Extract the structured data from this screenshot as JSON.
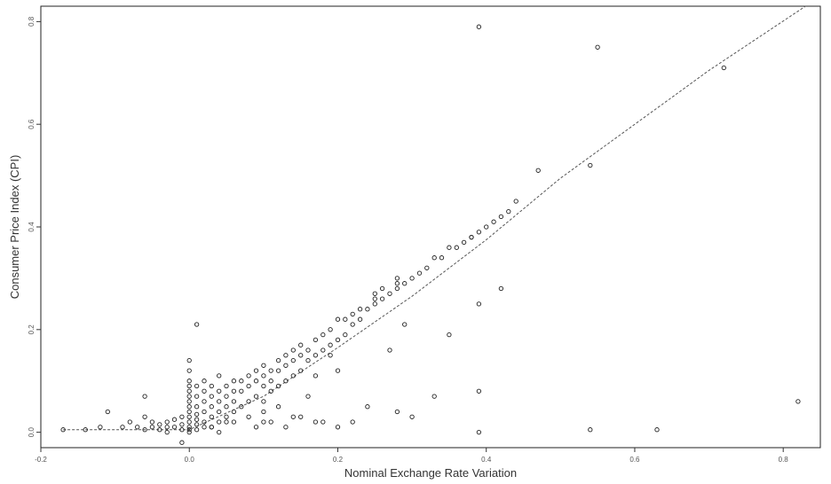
{
  "chart_data": {
    "type": "scatter",
    "title": "",
    "xlabel": "Nominal Exchange Rate Variation",
    "ylabel": "Consumer Price Index (CPI)",
    "xlim": [
      -0.2,
      0.85
    ],
    "ylim": [
      -0.03,
      0.83
    ],
    "xticks": [
      -0.2,
      0.0,
      0.2,
      0.4,
      0.6,
      0.8
    ],
    "xtick_labels": [
      "-0.2",
      "0.0",
      "0.2",
      "0.4",
      "0.6",
      "0.8"
    ],
    "yticks": [
      0.0,
      0.2,
      0.4,
      0.6,
      0.8
    ],
    "ytick_labels": [
      "0.0",
      "0.2",
      "0.4",
      "0.6",
      "0.8"
    ],
    "grid": false,
    "legend": "none",
    "point_color": "#222222",
    "line_color": "#555555",
    "fit_line": {
      "x": [
        -0.17,
        0.0,
        0.1,
        0.2,
        0.3,
        0.4,
        0.5,
        0.6,
        0.7,
        0.83
      ],
      "y": [
        0.005,
        0.005,
        0.07,
        0.165,
        0.265,
        0.375,
        0.495,
        0.6,
        0.705,
        0.83
      ]
    },
    "points": {
      "x": [
        -0.17,
        -0.14,
        -0.12,
        -0.11,
        -0.09,
        -0.08,
        -0.07,
        -0.06,
        -0.06,
        -0.05,
        -0.05,
        -0.04,
        -0.04,
        -0.03,
        -0.03,
        -0.03,
        -0.02,
        -0.02,
        -0.01,
        -0.01,
        -0.01,
        0.0,
        0.0,
        0.0,
        0.0,
        0.0,
        0.0,
        0.0,
        0.0,
        0.0,
        0.0,
        0.0,
        0.0,
        0.0,
        0.0,
        0.01,
        0.01,
        0.01,
        0.01,
        0.01,
        0.01,
        0.01,
        0.02,
        0.02,
        0.02,
        0.02,
        0.02,
        0.02,
        0.03,
        0.03,
        0.03,
        0.03,
        0.03,
        0.04,
        0.04,
        0.04,
        0.04,
        0.04,
        0.05,
        0.05,
        0.05,
        0.05,
        0.06,
        0.06,
        0.06,
        0.06,
        0.07,
        0.07,
        0.07,
        0.08,
        0.08,
        0.08,
        0.09,
        0.09,
        0.09,
        0.1,
        0.1,
        0.1,
        0.1,
        0.11,
        0.11,
        0.11,
        0.12,
        0.12,
        0.12,
        0.13,
        0.13,
        0.13,
        0.14,
        0.14,
        0.14,
        0.15,
        0.15,
        0.15,
        0.16,
        0.16,
        0.17,
        0.17,
        0.18,
        0.18,
        0.19,
        0.19,
        0.2,
        0.2,
        0.21,
        0.21,
        0.22,
        0.22,
        0.23,
        0.23,
        0.24,
        0.25,
        0.25,
        0.26,
        0.26,
        0.27,
        0.28,
        0.28,
        0.29,
        0.3,
        0.31,
        0.32,
        0.33,
        0.34,
        0.35,
        0.36,
        0.37,
        0.38,
        0.39,
        0.4,
        0.41,
        0.42,
        0.43,
        0.44,
        0.47,
        0.54,
        0.06,
        0.08,
        0.09,
        0.1,
        0.12,
        0.14,
        0.16,
        0.17,
        0.18,
        0.19,
        0.2,
        0.22,
        0.24,
        0.27,
        0.28,
        0.29,
        0.3,
        0.33,
        0.35,
        0.39,
        0.39,
        0.42,
        0.01,
        -0.06,
        0.38,
        0.28,
        0.25,
        0.63,
        0.82,
        0.39,
        0.55,
        0.72,
        0.39,
        0.54,
        0.03,
        0.04,
        0.05,
        -0.01,
        0.1,
        0.11,
        0.13,
        0.15,
        0.17,
        0.2
      ],
      "y": [
        0.005,
        0.005,
        0.01,
        0.04,
        0.01,
        0.02,
        0.01,
        0.03,
        0.005,
        0.01,
        0.02,
        0.005,
        0.015,
        0.01,
        0.02,
        0.0,
        0.01,
        0.025,
        0.005,
        0.015,
        0.03,
        0.005,
        0.01,
        0.02,
        0.03,
        0.04,
        0.05,
        0.06,
        0.07,
        0.08,
        0.09,
        0.1,
        0.12,
        0.14,
        0.0,
        0.005,
        0.015,
        0.025,
        0.035,
        0.05,
        0.07,
        0.09,
        0.01,
        0.02,
        0.04,
        0.06,
        0.08,
        0.1,
        0.01,
        0.03,
        0.05,
        0.07,
        0.09,
        0.02,
        0.04,
        0.06,
        0.08,
        0.11,
        0.03,
        0.05,
        0.07,
        0.09,
        0.04,
        0.06,
        0.08,
        0.1,
        0.05,
        0.08,
        0.1,
        0.06,
        0.09,
        0.11,
        0.07,
        0.1,
        0.12,
        0.06,
        0.09,
        0.11,
        0.13,
        0.08,
        0.1,
        0.12,
        0.09,
        0.12,
        0.14,
        0.1,
        0.13,
        0.15,
        0.11,
        0.14,
        0.16,
        0.12,
        0.15,
        0.17,
        0.14,
        0.16,
        0.15,
        0.18,
        0.16,
        0.19,
        0.17,
        0.2,
        0.18,
        0.22,
        0.19,
        0.22,
        0.21,
        0.23,
        0.22,
        0.24,
        0.24,
        0.25,
        0.27,
        0.26,
        0.28,
        0.27,
        0.28,
        0.3,
        0.29,
        0.3,
        0.31,
        0.32,
        0.34,
        0.34,
        0.36,
        0.36,
        0.37,
        0.38,
        0.39,
        0.4,
        0.41,
        0.42,
        0.43,
        0.45,
        0.51,
        0.52,
        0.02,
        0.03,
        0.01,
        0.02,
        0.05,
        0.03,
        0.07,
        0.11,
        0.02,
        0.15,
        0.12,
        0.02,
        0.05,
        0.16,
        0.04,
        0.21,
        0.03,
        0.07,
        0.19,
        0.25,
        0.08,
        0.28,
        0.21,
        0.07,
        0.38,
        0.29,
        0.26,
        0.005,
        0.06,
        0.79,
        0.75,
        0.71,
        0.0,
        0.005,
        0.01,
        0.0,
        0.02,
        -0.02,
        0.04,
        0.02,
        0.01,
        0.03,
        0.02,
        0.01
      ]
    }
  }
}
